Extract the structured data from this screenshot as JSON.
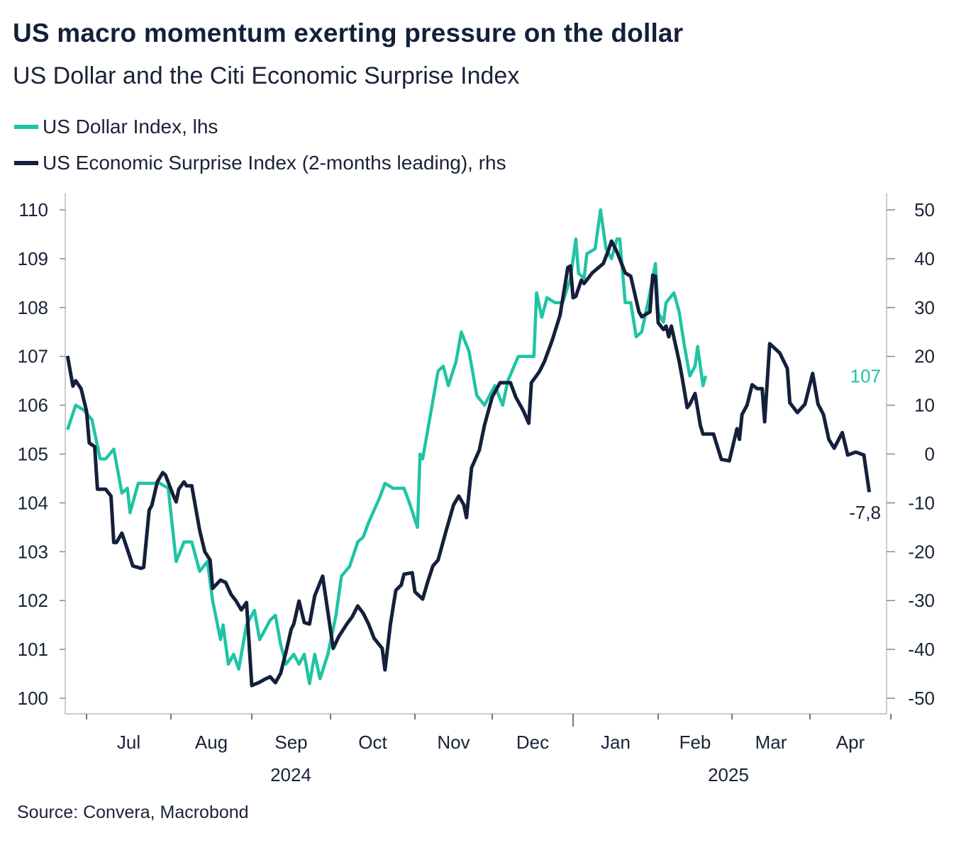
{
  "title": "US macro momentum exerting pressure on the dollar",
  "subtitle": "US Dollar and the Citi Economic Surprise Index",
  "source": "Source: Convera, Macrobond",
  "colors": {
    "dollar": "#1fc4a4",
    "surprise": "#14203b"
  },
  "chart_data": {
    "type": "line",
    "title": "US macro momentum exerting pressure on the dollar",
    "subtitle": "US Dollar and the Citi Economic Surprise Index",
    "legend_position": "top-left",
    "grid": false,
    "x_ticks": [
      "Jul",
      "Aug",
      "Sep",
      "Oct",
      "Nov",
      "Dec",
      "Jan",
      "Feb",
      "Mar",
      "Apr"
    ],
    "x_years": [
      "2024",
      "2025"
    ],
    "y_left": {
      "range": [
        100,
        110
      ],
      "ticks": [
        "100",
        "101",
        "102",
        "103",
        "104",
        "105",
        "106",
        "107",
        "108",
        "109",
        "110"
      ]
    },
    "y_right": {
      "range": [
        -50,
        50
      ],
      "ticks": [
        "-50",
        "-40",
        "-30",
        "-20",
        "-10",
        "0",
        "10",
        "20",
        "30",
        "40",
        "50"
      ]
    },
    "end_labels": {
      "dollar": "107",
      "surprise": "-7,8"
    },
    "series": [
      {
        "name": "US Dollar Index, lhs",
        "axis": "left",
        "points": [
          [
            "2024-06-24",
            105.5
          ],
          [
            "2024-06-27",
            106.0
          ],
          [
            "2024-06-30",
            105.9
          ],
          [
            "2024-07-03",
            105.7
          ],
          [
            "2024-07-06",
            104.9
          ],
          [
            "2024-07-08",
            104.9
          ],
          [
            "2024-07-11",
            105.1
          ],
          [
            "2024-07-14",
            104.2
          ],
          [
            "2024-07-16",
            104.3
          ],
          [
            "2024-07-17",
            103.8
          ],
          [
            "2024-07-20",
            104.4
          ],
          [
            "2024-07-24",
            104.4
          ],
          [
            "2024-07-28",
            104.4
          ],
          [
            "2024-07-31",
            104.3
          ],
          [
            "2024-08-03",
            102.8
          ],
          [
            "2024-08-06",
            103.2
          ],
          [
            "2024-08-09",
            103.2
          ],
          [
            "2024-08-12",
            102.6
          ],
          [
            "2024-08-15",
            102.8
          ],
          [
            "2024-08-17",
            102.0
          ],
          [
            "2024-08-20",
            101.2
          ],
          [
            "2024-08-21",
            101.5
          ],
          [
            "2024-08-23",
            100.7
          ],
          [
            "2024-08-25",
            100.9
          ],
          [
            "2024-08-27",
            100.6
          ],
          [
            "2024-08-30",
            101.5
          ],
          [
            "2024-09-02",
            101.8
          ],
          [
            "2024-09-04",
            101.2
          ],
          [
            "2024-09-08",
            101.6
          ],
          [
            "2024-09-10",
            101.7
          ],
          [
            "2024-09-12",
            101.1
          ],
          [
            "2024-09-14",
            100.7
          ],
          [
            "2024-09-17",
            100.9
          ],
          [
            "2024-09-19",
            100.7
          ],
          [
            "2024-09-21",
            100.9
          ],
          [
            "2024-09-23",
            100.3
          ],
          [
            "2024-09-25",
            100.9
          ],
          [
            "2024-09-27",
            100.4
          ],
          [
            "2024-09-30",
            100.9
          ],
          [
            "2024-10-03",
            101.7
          ],
          [
            "2024-10-05",
            102.5
          ],
          [
            "2024-10-08",
            102.7
          ],
          [
            "2024-10-11",
            103.2
          ],
          [
            "2024-10-13",
            103.3
          ],
          [
            "2024-10-15",
            103.6
          ],
          [
            "2024-10-19",
            104.1
          ],
          [
            "2024-10-21",
            104.4
          ],
          [
            "2024-10-24",
            104.3
          ],
          [
            "2024-10-28",
            104.3
          ],
          [
            "2024-10-30",
            104.0
          ],
          [
            "2024-11-02",
            103.5
          ],
          [
            "2024-11-03",
            105.0
          ],
          [
            "2024-11-04",
            104.9
          ],
          [
            "2024-11-07",
            105.8
          ],
          [
            "2024-11-10",
            106.7
          ],
          [
            "2024-11-12",
            106.8
          ],
          [
            "2024-11-14",
            106.4
          ],
          [
            "2024-11-17",
            106.9
          ],
          [
            "2024-11-19",
            107.5
          ],
          [
            "2024-11-22",
            107.1
          ],
          [
            "2024-11-25",
            106.2
          ],
          [
            "2024-11-28",
            106.0
          ],
          [
            "2024-12-02",
            106.4
          ],
          [
            "2024-12-05",
            106.0
          ],
          [
            "2024-12-07",
            106.5
          ],
          [
            "2024-12-11",
            107.0
          ],
          [
            "2024-12-14",
            107.0
          ],
          [
            "2024-12-17",
            107.0
          ],
          [
            "2024-12-18",
            108.3
          ],
          [
            "2024-12-20",
            107.8
          ],
          [
            "2024-12-22",
            108.2
          ],
          [
            "2024-12-25",
            108.1
          ],
          [
            "2024-12-28",
            108.1
          ],
          [
            "2024-12-31",
            108.6
          ],
          [
            "2025-01-02",
            109.4
          ],
          [
            "2025-01-03",
            108.7
          ],
          [
            "2025-01-05",
            108.6
          ],
          [
            "2025-01-06",
            109.1
          ],
          [
            "2025-01-09",
            109.2
          ],
          [
            "2025-01-11",
            110.0
          ],
          [
            "2025-01-13",
            109.2
          ],
          [
            "2025-01-15",
            109.0
          ],
          [
            "2025-01-17",
            109.4
          ],
          [
            "2025-01-18",
            109.4
          ],
          [
            "2025-01-20",
            108.1
          ],
          [
            "2025-01-22",
            108.1
          ],
          [
            "2025-01-24",
            107.4
          ],
          [
            "2025-01-26",
            107.5
          ],
          [
            "2025-01-29",
            108.3
          ],
          [
            "2025-01-31",
            108.9
          ],
          [
            "2025-02-01",
            107.9
          ],
          [
            "2025-02-03",
            107.7
          ],
          [
            "2025-02-04",
            108.1
          ],
          [
            "2025-02-07",
            108.3
          ],
          [
            "2025-02-09",
            107.9
          ],
          [
            "2025-02-11",
            107.2
          ],
          [
            "2025-02-13",
            106.6
          ],
          [
            "2025-02-15",
            106.8
          ],
          [
            "2025-02-16",
            107.2
          ],
          [
            "2025-02-18",
            106.4
          ],
          [
            "2025-02-19",
            106.6
          ]
        ]
      },
      {
        "name": "US Economic Surprise Index (2-months leading), rhs",
        "axis": "right",
        "points": [
          [
            "2024-06-24",
            20.1
          ],
          [
            "2024-06-26",
            13.9
          ],
          [
            "2024-06-27",
            15.0
          ],
          [
            "2024-06-29",
            13.4
          ],
          [
            "2024-07-01",
            8.8
          ],
          [
            "2024-07-02",
            2.3
          ],
          [
            "2024-07-04",
            1.5
          ],
          [
            "2024-07-05",
            -7.2
          ],
          [
            "2024-07-08",
            -7.2
          ],
          [
            "2024-07-10",
            -8.6
          ],
          [
            "2024-07-11",
            -18.1
          ],
          [
            "2024-07-12",
            -18.1
          ],
          [
            "2024-07-14",
            -16.2
          ],
          [
            "2024-07-16",
            -19.5
          ],
          [
            "2024-07-18",
            -22.9
          ],
          [
            "2024-07-21",
            -23.4
          ],
          [
            "2024-07-22",
            -23.2
          ],
          [
            "2024-07-24",
            -11.5
          ],
          [
            "2024-07-25",
            -10.5
          ],
          [
            "2024-07-27",
            -5.7
          ],
          [
            "2024-07-29",
            -3.8
          ],
          [
            "2024-07-30",
            -4.3
          ],
          [
            "2024-08-02",
            -8.6
          ],
          [
            "2024-08-03",
            -9.8
          ],
          [
            "2024-08-04",
            -7.2
          ],
          [
            "2024-08-06",
            -5.7
          ],
          [
            "2024-08-07",
            -6.5
          ],
          [
            "2024-08-09",
            -6.5
          ],
          [
            "2024-08-12",
            -15.6
          ],
          [
            "2024-08-14",
            -20.0
          ],
          [
            "2024-08-16",
            -21.7
          ],
          [
            "2024-08-17",
            -27.5
          ],
          [
            "2024-08-20",
            -25.8
          ],
          [
            "2024-08-22",
            -26.3
          ],
          [
            "2024-08-24",
            -28.7
          ],
          [
            "2024-08-26",
            -30.1
          ],
          [
            "2024-08-28",
            -31.9
          ],
          [
            "2024-08-30",
            -30.4
          ],
          [
            "2024-09-01",
            -47.4
          ],
          [
            "2024-09-04",
            -46.7
          ],
          [
            "2024-09-06",
            -46.1
          ],
          [
            "2024-09-08",
            -45.6
          ],
          [
            "2024-09-10",
            -46.8
          ],
          [
            "2024-09-12",
            -44.9
          ],
          [
            "2024-09-14",
            -40.6
          ],
          [
            "2024-09-16",
            -35.9
          ],
          [
            "2024-09-17",
            -34.8
          ],
          [
            "2024-09-19",
            -30.1
          ],
          [
            "2024-09-21",
            -34.5
          ],
          [
            "2024-09-23",
            -34.8
          ],
          [
            "2024-09-25",
            -29.0
          ],
          [
            "2024-09-28",
            -25.0
          ],
          [
            "2024-10-02",
            -39.8
          ],
          [
            "2024-10-04",
            -37.4
          ],
          [
            "2024-10-07",
            -34.8
          ],
          [
            "2024-10-09",
            -33.3
          ],
          [
            "2024-10-11",
            -31.1
          ],
          [
            "2024-10-13",
            -32.6
          ],
          [
            "2024-10-15",
            -34.8
          ],
          [
            "2024-10-17",
            -37.7
          ],
          [
            "2024-10-20",
            -39.8
          ],
          [
            "2024-10-21",
            -44.2
          ],
          [
            "2024-10-23",
            -34.8
          ],
          [
            "2024-10-25",
            -27.9
          ],
          [
            "2024-10-27",
            -26.8
          ],
          [
            "2024-10-28",
            -24.6
          ],
          [
            "2024-10-31",
            -24.3
          ],
          [
            "2024-11-01",
            -28.2
          ],
          [
            "2024-11-04",
            -29.7
          ],
          [
            "2024-11-06",
            -26.1
          ],
          [
            "2024-11-08",
            -22.9
          ],
          [
            "2024-11-10",
            -21.7
          ],
          [
            "2024-11-13",
            -15.9
          ],
          [
            "2024-11-16",
            -10.4
          ],
          [
            "2024-11-18",
            -8.6
          ],
          [
            "2024-11-20",
            -10.4
          ],
          [
            "2024-11-21",
            -13.0
          ],
          [
            "2024-11-23",
            -2.8
          ],
          [
            "2024-11-26",
            0.8
          ],
          [
            "2024-11-28",
            5.9
          ],
          [
            "2024-12-01",
            11.7
          ],
          [
            "2024-12-04",
            14.6
          ],
          [
            "2024-12-08",
            14.6
          ],
          [
            "2024-12-10",
            11.7
          ],
          [
            "2024-12-13",
            8.8
          ],
          [
            "2024-12-15",
            6.3
          ],
          [
            "2024-12-16",
            14.6
          ],
          [
            "2024-12-19",
            16.8
          ],
          [
            "2024-12-21",
            18.9
          ],
          [
            "2024-12-24",
            23.3
          ],
          [
            "2024-12-27",
            28.4
          ],
          [
            "2024-12-30",
            38.2
          ],
          [
            "2024-12-31",
            38.5
          ],
          [
            "2025-01-01",
            32.0
          ],
          [
            "2025-01-02",
            32.3
          ],
          [
            "2025-01-04",
            35.6
          ],
          [
            "2025-01-05",
            34.9
          ],
          [
            "2025-01-08",
            37.1
          ],
          [
            "2025-01-12",
            39.0
          ],
          [
            "2025-01-14",
            41.9
          ],
          [
            "2025-01-15",
            43.6
          ],
          [
            "2025-01-17",
            41.4
          ],
          [
            "2025-01-20",
            37.1
          ],
          [
            "2025-01-22",
            36.4
          ],
          [
            "2025-01-25",
            29.1
          ],
          [
            "2025-01-26",
            28.1
          ],
          [
            "2025-01-29",
            29.1
          ],
          [
            "2025-01-30",
            36.6
          ],
          [
            "2025-01-31",
            36.4
          ],
          [
            "2025-02-01",
            26.9
          ],
          [
            "2025-02-03",
            25.5
          ],
          [
            "2025-02-04",
            26.2
          ],
          [
            "2025-02-05",
            24.0
          ],
          [
            "2025-02-06",
            26.2
          ],
          [
            "2025-02-09",
            18.9
          ],
          [
            "2025-02-10",
            16.0
          ],
          [
            "2025-02-12",
            9.5
          ],
          [
            "2025-02-13",
            10.2
          ],
          [
            "2025-02-15",
            12.4
          ],
          [
            "2025-02-17",
            5.9
          ],
          [
            "2025-02-18",
            4.1
          ],
          [
            "2025-02-22",
            4.1
          ],
          [
            "2025-02-25",
            -1.1
          ],
          [
            "2025-02-28",
            -1.4
          ],
          [
            "2025-03-03",
            5.2
          ],
          [
            "2025-03-04",
            3.0
          ],
          [
            "2025-03-05",
            8.1
          ],
          [
            "2025-03-07",
            10.0
          ],
          [
            "2025-03-09",
            14.2
          ],
          [
            "2025-03-11",
            13.4
          ],
          [
            "2025-03-13",
            13.4
          ],
          [
            "2025-03-14",
            6.6
          ],
          [
            "2025-03-16",
            22.6
          ],
          [
            "2025-03-20",
            20.7
          ],
          [
            "2025-03-23",
            17.5
          ],
          [
            "2025-03-24",
            10.5
          ],
          [
            "2025-03-27",
            8.5
          ],
          [
            "2025-03-30",
            10.2
          ],
          [
            "2025-04-02",
            16.5
          ],
          [
            "2025-04-04",
            10.2
          ],
          [
            "2025-04-06",
            8.1
          ],
          [
            "2025-04-08",
            3.0
          ],
          [
            "2025-04-10",
            1.2
          ],
          [
            "2025-04-13",
            4.4
          ],
          [
            "2025-04-15",
            -0.2
          ],
          [
            "2025-04-18",
            0.4
          ],
          [
            "2025-04-21",
            -0.2
          ],
          [
            "2025-04-23",
            -7.8
          ]
        ]
      }
    ]
  }
}
